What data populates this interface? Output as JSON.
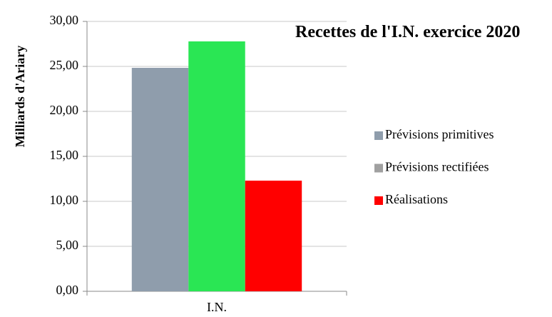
{
  "chart_data": {
    "type": "bar",
    "title": "Recettes de l'I.N. exercice 2020",
    "y_label": "Milliards d'Ariary",
    "categories": [
      "I.N."
    ],
    "series": [
      {
        "name": "Prévisions primitives",
        "color": "#8f9dac",
        "values": [
          24.84
        ]
      },
      {
        "name": "Prévisions rectifiées",
        "color": "#2ae654",
        "legend_color": "#a0a0a0",
        "values": [
          27.78
        ]
      },
      {
        "name": "Réalisations",
        "color": "#ff0000",
        "values": [
          12.3
        ]
      }
    ],
    "ylim": [
      0,
      30
    ],
    "yticks": [
      {
        "value": 0,
        "label": "0,00"
      },
      {
        "value": 5,
        "label": "5,00"
      },
      {
        "value": 10,
        "label": "10,00"
      },
      {
        "value": 15,
        "label": "15,00"
      },
      {
        "value": 20,
        "label": "20,00"
      },
      {
        "value": 25,
        "label": "25,00"
      },
      {
        "value": 30,
        "label": "30,00"
      }
    ],
    "grid": true,
    "legend": "right"
  }
}
